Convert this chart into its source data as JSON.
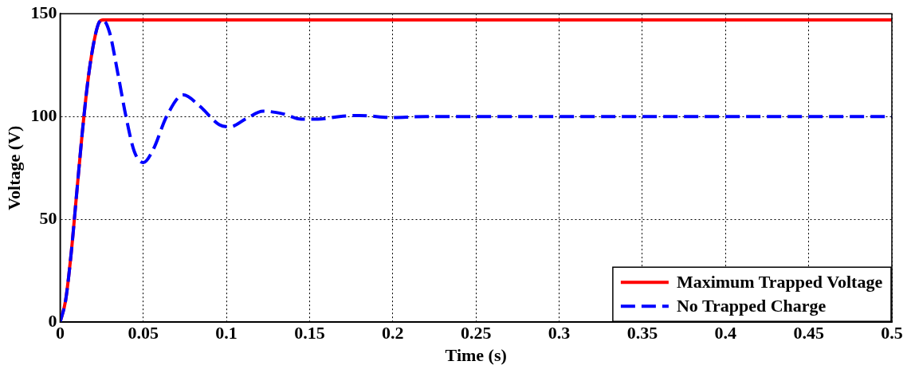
{
  "chart_data": {
    "type": "line",
    "xlabel": "Time (s)",
    "ylabel": "Voltage (V)",
    "xlim": [
      0,
      0.5
    ],
    "ylim": [
      0,
      150
    ],
    "xticks": [
      0,
      0.05,
      0.1,
      0.15,
      0.2,
      0.25,
      0.3,
      0.35,
      0.4,
      0.45,
      0.5
    ],
    "yticks": [
      0,
      50,
      100,
      150
    ],
    "grid": true,
    "legend": "bottom right",
    "series": [
      {
        "name": "Maximum Trapped Voltage",
        "color": "#ff0000",
        "line_style": "solid",
        "x": [
          0,
          0.0033,
          0.0066,
          0.0099,
          0.0132,
          0.0165,
          0.0198,
          0.023,
          0.0256,
          0.5
        ],
        "values": [
          0,
          10.5,
          33,
          62,
          91,
          116,
          134,
          145,
          147,
          147
        ]
      },
      {
        "name": "No Trapped Charge",
        "color": "#0000ff",
        "line_style": "dashed",
        "x": [
          0,
          0.0033,
          0.0066,
          0.0099,
          0.0132,
          0.0165,
          0.0198,
          0.023,
          0.0256,
          0.0297,
          0.0347,
          0.0396,
          0.0446,
          0.05,
          0.056,
          0.064,
          0.074,
          0.084,
          0.0957,
          0.102,
          0.112,
          0.122,
          0.134,
          0.145,
          0.155,
          0.168,
          0.18,
          0.2,
          0.22,
          0.5
        ],
        "values": [
          0,
          10.5,
          33,
          62,
          91,
          116,
          134,
          145,
          147,
          141,
          121,
          100,
          83,
          77.6,
          84,
          100,
          110.5,
          105,
          96,
          95,
          99,
          102.6,
          101.3,
          98.7,
          98.7,
          100,
          100.5,
          99.5,
          100,
          100
        ]
      }
    ]
  }
}
